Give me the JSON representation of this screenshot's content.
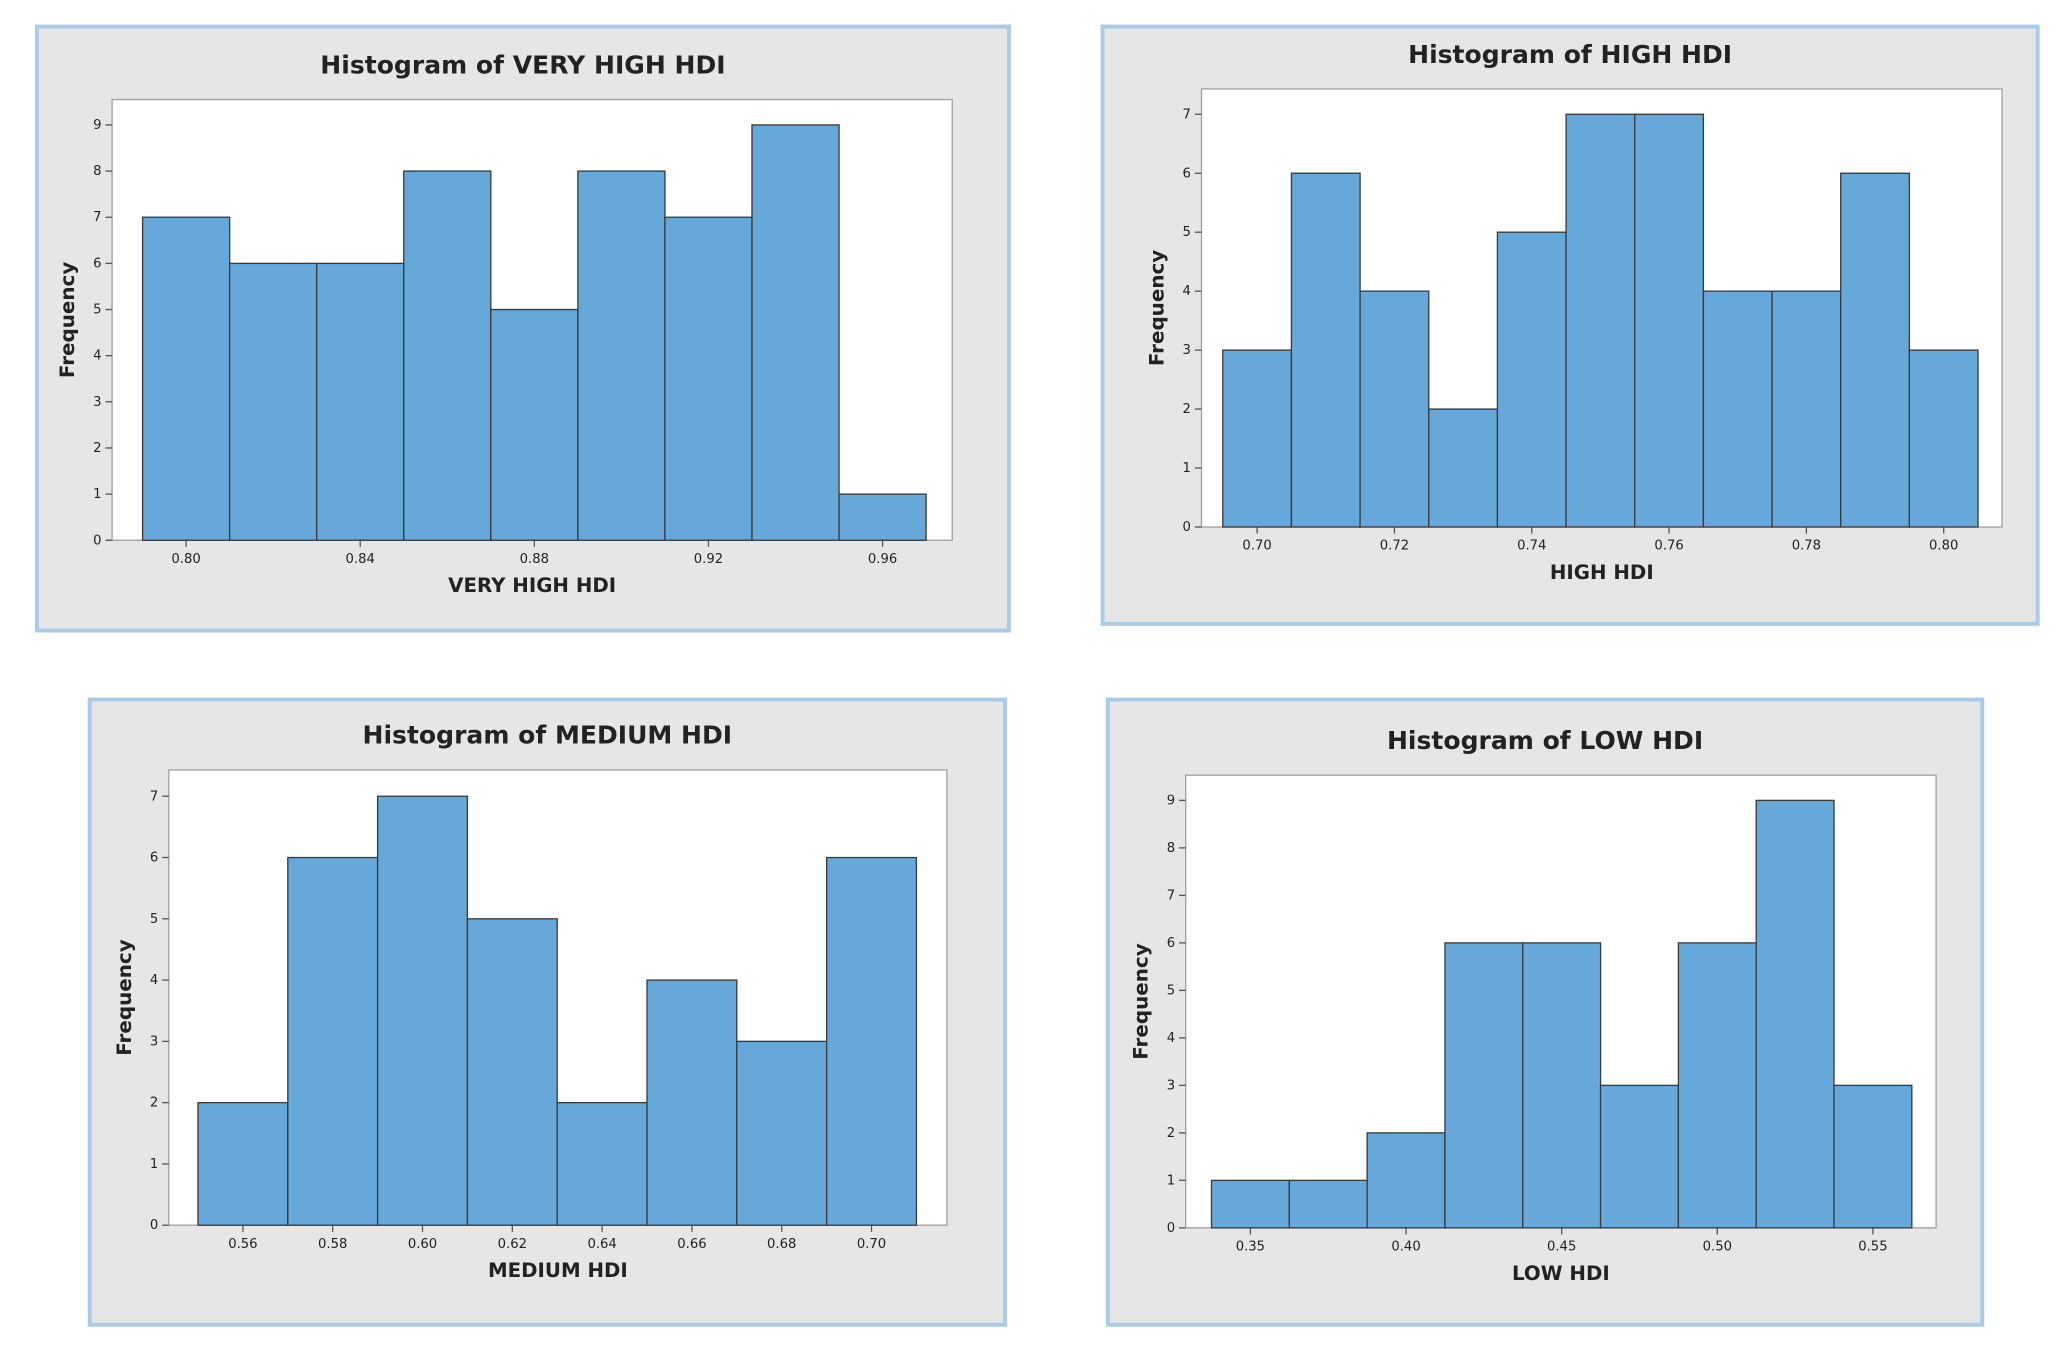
{
  "chart_data": [
    {
      "type": "histogram",
      "title": "Histogram of VERY HIGH HDI",
      "xlabel": "VERY HIGH HDI",
      "ylabel": "Frequency",
      "bins": [
        0.79,
        0.81,
        0.83,
        0.85,
        0.87,
        0.89,
        0.91,
        0.93,
        0.95,
        0.97
      ],
      "counts": [
        7,
        6,
        6,
        8,
        5,
        8,
        7,
        9,
        1
      ],
      "color": "#67a8db",
      "xlim": [
        0.783,
        0.976
      ],
      "ylim": [
        0,
        9.55
      ],
      "xticks": [
        {
          "value": 0.8,
          "label": "0.80"
        },
        {
          "value": 0.84,
          "label": "0.84"
        },
        {
          "value": 0.88,
          "label": "0.88"
        },
        {
          "value": 0.92,
          "label": "0.92"
        },
        {
          "value": 0.96,
          "label": "0.96"
        }
      ],
      "yticks": [
        0,
        1,
        2,
        3,
        4,
        5,
        6,
        7,
        8,
        9
      ]
    },
    {
      "type": "histogram",
      "title": "Histogram of HIGH HDI",
      "xlabel": "HIGH HDI",
      "ylabel": "Frequency",
      "bins": [
        0.695,
        0.705,
        0.715,
        0.725,
        0.735,
        0.745,
        0.755,
        0.765,
        0.775,
        0.785,
        0.795,
        0.805
      ],
      "counts": [
        3,
        6,
        4,
        2,
        5,
        7,
        7,
        4,
        4,
        6,
        3
      ],
      "color": "#67a8db",
      "xlim": [
        0.6919,
        0.8085
      ],
      "ylim": [
        0,
        7.43
      ],
      "xticks": [
        {
          "value": 0.7,
          "label": "0.70"
        },
        {
          "value": 0.72,
          "label": "0.72"
        },
        {
          "value": 0.74,
          "label": "0.74"
        },
        {
          "value": 0.76,
          "label": "0.76"
        },
        {
          "value": 0.78,
          "label": "0.78"
        },
        {
          "value": 0.8,
          "label": "0.80"
        }
      ],
      "yticks": [
        0,
        1,
        2,
        3,
        4,
        5,
        6,
        7
      ]
    },
    {
      "type": "histogram",
      "title": "Histogram of MEDIUM HDI",
      "xlabel": "MEDIUM HDI",
      "ylabel": "Frequency",
      "bins": [
        0.55,
        0.57,
        0.59,
        0.61,
        0.63,
        0.65,
        0.67,
        0.69,
        0.71
      ],
      "counts": [
        2,
        6,
        7,
        5,
        2,
        4,
        3,
        6
      ],
      "color": "#67a8db",
      "xlim": [
        0.5435,
        0.7168
      ],
      "ylim": [
        0,
        7.43
      ],
      "xticks": [
        {
          "value": 0.56,
          "label": "0.56"
        },
        {
          "value": 0.58,
          "label": "0.58"
        },
        {
          "value": 0.6,
          "label": "0.60"
        },
        {
          "value": 0.62,
          "label": "0.62"
        },
        {
          "value": 0.64,
          "label": "0.64"
        },
        {
          "value": 0.66,
          "label": "0.66"
        },
        {
          "value": 0.68,
          "label": "0.68"
        },
        {
          "value": 0.7,
          "label": "0.70"
        }
      ],
      "yticks": [
        0,
        1,
        2,
        3,
        4,
        5,
        6,
        7
      ]
    },
    {
      "type": "histogram",
      "title": "Histogram of LOW HDI",
      "xlabel": "LOW HDI",
      "ylabel": "Frequency",
      "bins": [
        0.3375,
        0.3625,
        0.3875,
        0.4125,
        0.4375,
        0.4625,
        0.4875,
        0.5125,
        0.5375,
        0.5625
      ],
      "counts": [
        1,
        1,
        2,
        6,
        6,
        3,
        6,
        9,
        3
      ],
      "color": "#67a8db",
      "xlim": [
        0.3292,
        0.5703
      ],
      "ylim": [
        0,
        9.53
      ],
      "xticks": [
        {
          "value": 0.35,
          "label": "0.35"
        },
        {
          "value": 0.4,
          "label": "0.40"
        },
        {
          "value": 0.45,
          "label": "0.45"
        },
        {
          "value": 0.5,
          "label": "0.50"
        },
        {
          "value": 0.55,
          "label": "0.55"
        }
      ],
      "yticks": [
        0,
        1,
        2,
        3,
        4,
        5,
        6,
        7,
        8,
        9
      ]
    }
  ]
}
